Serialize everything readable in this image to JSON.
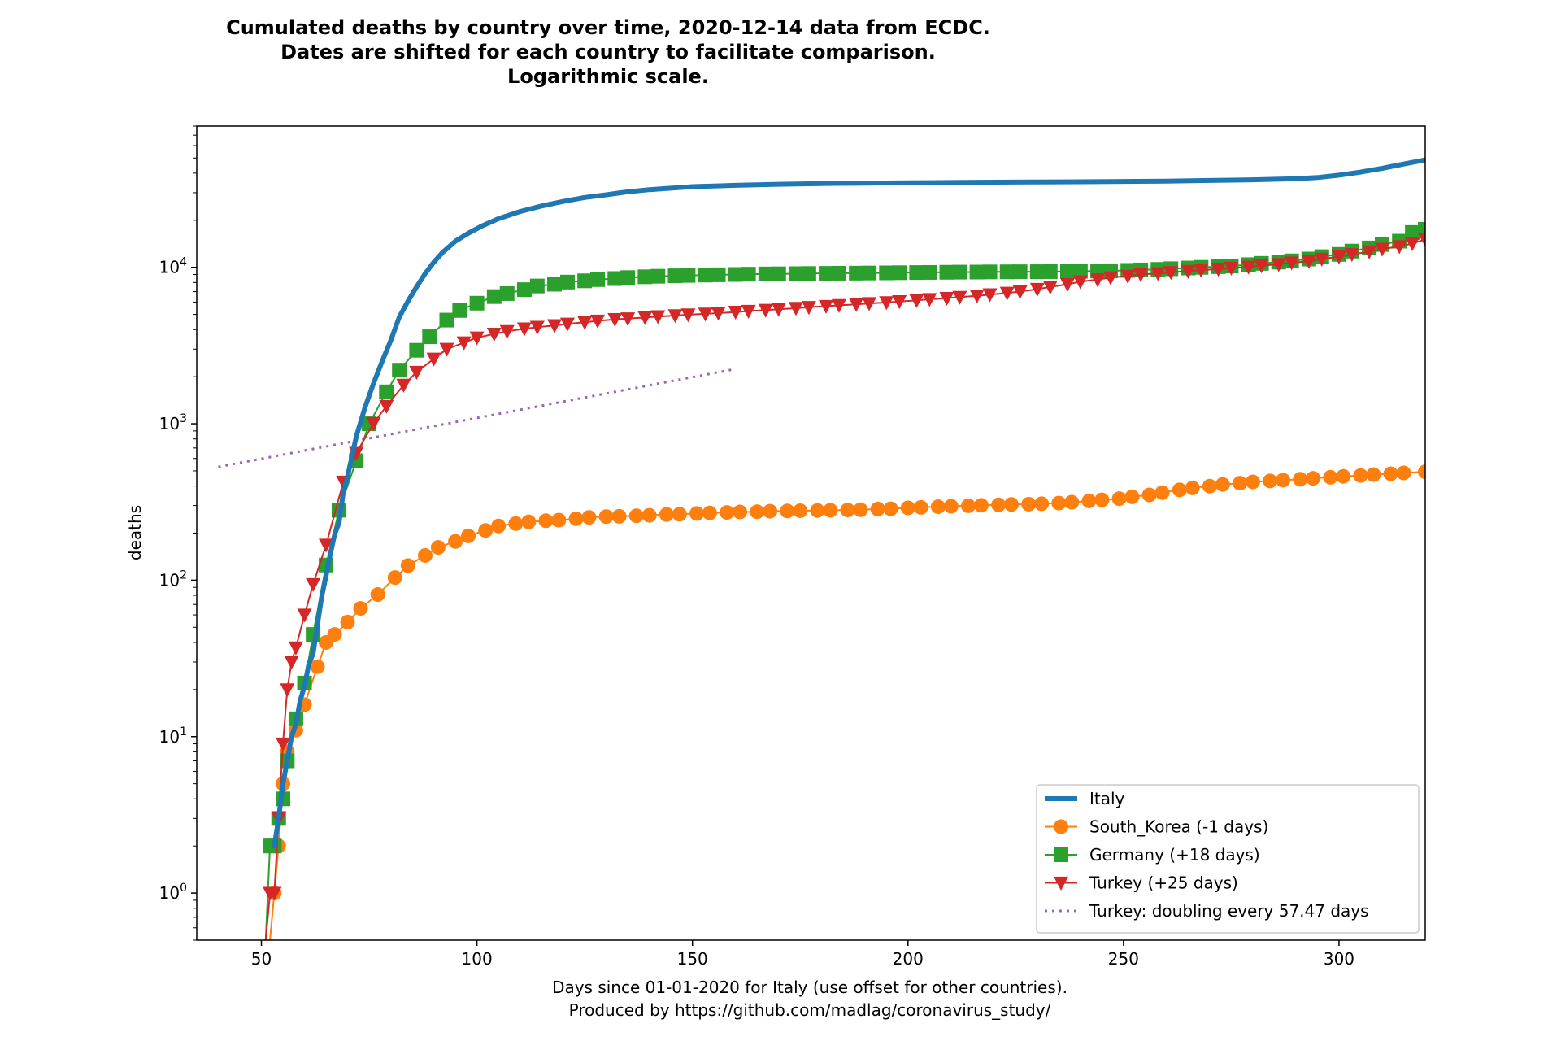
{
  "chart_data": {
    "type": "line",
    "title_lines": [
      "Cumulated deaths by country over time, 2020-12-14 data from ECDC.",
      "Dates are shifted for each country to facilitate comparison.",
      "Logarithmic scale."
    ],
    "xlabel_lines": [
      "Days since 01-01-2020 for Italy (use offset for other countries).",
      "Produced by https://github.com/madlag/coronavirus_study/"
    ],
    "ylabel": "deaths",
    "xlim": [
      35,
      320
    ],
    "ylim": [
      0.5,
      80000
    ],
    "yscale": "log",
    "x_ticks": [
      50,
      100,
      150,
      200,
      250,
      300
    ],
    "y_ticks": [
      {
        "value": 1,
        "base": "10",
        "exp": "0"
      },
      {
        "value": 10,
        "base": "10",
        "exp": "1"
      },
      {
        "value": 100,
        "base": "10",
        "exp": "2"
      },
      {
        "value": 1000,
        "base": "10",
        "exp": "3"
      },
      {
        "value": 10000,
        "base": "10",
        "exp": "4"
      }
    ],
    "grid": false,
    "legend_position": "lower-right",
    "series": [
      {
        "name": "Italy",
        "color": "#1f77b4",
        "marker": "none",
        "style": "solid-thick",
        "x": [
          53,
          54,
          55,
          56,
          57,
          58,
          59,
          60,
          61,
          62,
          63,
          64,
          65,
          66,
          67,
          68,
          69,
          70,
          72,
          74,
          76,
          78,
          80,
          82,
          84,
          86,
          88,
          90,
          92,
          95,
          98,
          101,
          105,
          110,
          115,
          120,
          125,
          130,
          135,
          140,
          150,
          160,
          170,
          180,
          190,
          200,
          210,
          220,
          230,
          240,
          250,
          260,
          270,
          280,
          290,
          295,
          300,
          305,
          310,
          315,
          320
        ],
        "y": [
          2,
          3,
          5,
          7,
          10,
          12,
          17,
          21,
          29,
          34,
          52,
          79,
          107,
          148,
          197,
          233,
          366,
          463,
          827,
          1266,
          1809,
          2503,
          3405,
          4825,
          6077,
          7503,
          9134,
          10779,
          12428,
          14681,
          16523,
          18279,
          20465,
          22745,
          24648,
          26384,
          27967,
          29079,
          30395,
          31368,
          32785,
          33415,
          33964,
          34301,
          34514,
          34708,
          34861,
          35035,
          35141,
          35220,
          35390,
          35587,
          35918,
          36246,
          36832,
          37479,
          38826,
          40638,
          42953,
          45733,
          48600
        ]
      },
      {
        "name": "South_Korea (-1 days)",
        "color": "#ff7f0e",
        "marker": "circle",
        "x": [
          52,
          53,
          54,
          55,
          56,
          58,
          60,
          63,
          65,
          67,
          70,
          73,
          77,
          81,
          84,
          88,
          91,
          95,
          98,
          102,
          105,
          109,
          112,
          116,
          119,
          123,
          126,
          130,
          133,
          137,
          140,
          144,
          147,
          151,
          154,
          158,
          161,
          165,
          168,
          172,
          175,
          179,
          182,
          186,
          189,
          193,
          196,
          200,
          203,
          207,
          210,
          214,
          217,
          221,
          224,
          228,
          231,
          235,
          238,
          242,
          245,
          249,
          252,
          256,
          259,
          263,
          266,
          270,
          273,
          277,
          280,
          284,
          287,
          291,
          294,
          298,
          301,
          305,
          308,
          312,
          315,
          320
        ],
        "y": [
          0.5,
          1,
          2,
          5,
          8,
          11,
          16,
          28,
          40,
          45,
          54,
          66,
          81,
          104,
          124,
          144,
          162,
          177,
          192,
          208,
          222,
          230,
          236,
          240,
          242,
          247,
          252,
          255,
          256,
          258,
          260,
          263,
          264,
          267,
          269,
          271,
          273,
          274,
          276,
          277,
          278,
          279,
          280,
          281,
          282,
          285,
          286,
          290,
          292,
          295,
          297,
          299,
          301,
          303,
          305,
          306,
          308,
          311,
          315,
          321,
          326,
          332,
          341,
          351,
          363,
          378,
          389,
          399,
          409,
          417,
          425,
          431,
          436,
          442,
          448,
          455,
          461,
          467,
          473,
          479,
          485,
          493
        ]
      },
      {
        "name": "Germany (+18 days)",
        "color": "#2ca02c",
        "marker": "square",
        "x": [
          51,
          52,
          53,
          54,
          55,
          56,
          58,
          60,
          62,
          65,
          68,
          72,
          75,
          79,
          82,
          86,
          89,
          93,
          96,
          100,
          104,
          107,
          111,
          114,
          118,
          121,
          125,
          128,
          132,
          135,
          139,
          142,
          146,
          149,
          153,
          156,
          160,
          163,
          167,
          170,
          174,
          177,
          181,
          184,
          188,
          191,
          195,
          198,
          202,
          205,
          209,
          212,
          216,
          219,
          223,
          226,
          230,
          233,
          237,
          240,
          244,
          247,
          251,
          254,
          258,
          261,
          265,
          268,
          272,
          275,
          279,
          282,
          286,
          289,
          293,
          296,
          300,
          303,
          307,
          310,
          314,
          317,
          320
        ],
        "y": [
          0.5,
          2,
          2,
          3,
          4,
          7,
          13,
          22,
          45,
          125,
          280,
          580,
          1000,
          1600,
          2200,
          2950,
          3600,
          4600,
          5300,
          5900,
          6500,
          6800,
          7200,
          7600,
          7800,
          8050,
          8200,
          8350,
          8480,
          8600,
          8700,
          8770,
          8830,
          8880,
          8920,
          8960,
          9000,
          9040,
          9070,
          9090,
          9110,
          9130,
          9150,
          9170,
          9180,
          9200,
          9220,
          9240,
          9260,
          9280,
          9300,
          9320,
          9330,
          9350,
          9360,
          9370,
          9380,
          9390,
          9410,
          9440,
          9470,
          9510,
          9560,
          9620,
          9700,
          9800,
          9900,
          10000,
          10100,
          10200,
          10400,
          10600,
          10800,
          11000,
          11300,
          11700,
          12100,
          12700,
          13300,
          14000,
          14700,
          16700,
          17500
        ]
      },
      {
        "name": "Turkey (+25 days)",
        "color": "#d62728",
        "marker": "triangle-down",
        "x": [
          51,
          52,
          53,
          54,
          55,
          56,
          57,
          58,
          60,
          62,
          65,
          69,
          72,
          76,
          79,
          83,
          86,
          90,
          93,
          97,
          100,
          104,
          107,
          111,
          114,
          118,
          121,
          125,
          128,
          132,
          135,
          139,
          142,
          146,
          149,
          153,
          156,
          160,
          163,
          167,
          170,
          174,
          177,
          181,
          184,
          188,
          191,
          195,
          198,
          202,
          205,
          209,
          212,
          216,
          219,
          223,
          226,
          230,
          233,
          237,
          240,
          244,
          247,
          251,
          254,
          258,
          261,
          265,
          268,
          272,
          275,
          279,
          282,
          286,
          289,
          293,
          296,
          300,
          303,
          307,
          310,
          314,
          317,
          320
        ],
        "y": [
          0.5,
          1,
          1,
          3,
          9,
          20,
          30,
          37,
          60,
          94,
          168,
          425,
          649,
          1006,
          1296,
          1769,
          2140,
          2600,
          3000,
          3300,
          3550,
          3750,
          3900,
          4050,
          4150,
          4250,
          4350,
          4450,
          4550,
          4650,
          4700,
          4780,
          4850,
          4920,
          4980,
          5040,
          5100,
          5180,
          5250,
          5330,
          5400,
          5480,
          5560,
          5640,
          5720,
          5800,
          5880,
          5960,
          6050,
          6150,
          6250,
          6350,
          6450,
          6580,
          6700,
          6850,
          7000,
          7250,
          7500,
          7800,
          8100,
          8350,
          8600,
          8800,
          9000,
          9150,
          9300,
          9450,
          9600,
          9750,
          9900,
          10050,
          10250,
          10450,
          10700,
          10950,
          11300,
          11700,
          12100,
          12600,
          13100,
          13600,
          14200,
          15100
        ]
      },
      {
        "name": "Turkey: doubling every 57.47 days",
        "color": "#9467bd",
        "marker": "none",
        "style": "dotted",
        "x": [
          40,
          160
        ],
        "y": [
          530,
          2240
        ]
      }
    ]
  }
}
